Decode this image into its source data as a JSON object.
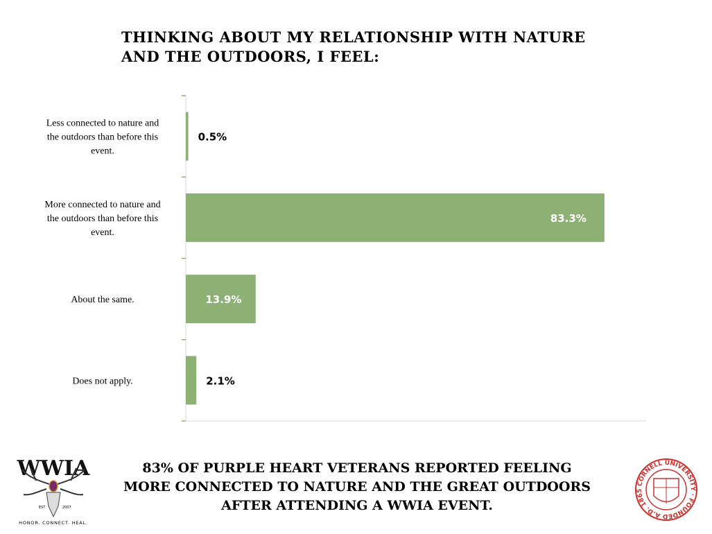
{
  "chart_data": {
    "type": "bar",
    "orientation": "horizontal",
    "title": "Thinking about my relationship with nature and the outdoors, I feel:",
    "categories": [
      "Less connected to nature and the outdoors than before this event.",
      "More connected to nature and the outdoors than before this event.",
      "About the same.",
      "Does not apply."
    ],
    "values": [
      0.5,
      83.3,
      13.9,
      2.1
    ],
    "data_labels": [
      "0.5%",
      "83.3%",
      "13.9%",
      "2.1%"
    ],
    "xlim": [
      0,
      91.6
    ],
    "grid": false,
    "bar_color": "#8db174"
  },
  "footer": {
    "line1": "83% of Purple Heart Veterans reported feeling",
    "line2": "more connected to nature and the great outdoors",
    "line3": "after attending a WWIA event."
  },
  "logos": {
    "left": {
      "text": "WWIA",
      "est": "EST",
      "year": "2007",
      "tagline": "HONOR. CONNECT. HEAL."
    },
    "right": {
      "text": "CORNELL UNIVERSITY FOUNDED A.D. 1865",
      "color": "#c8312f"
    }
  }
}
